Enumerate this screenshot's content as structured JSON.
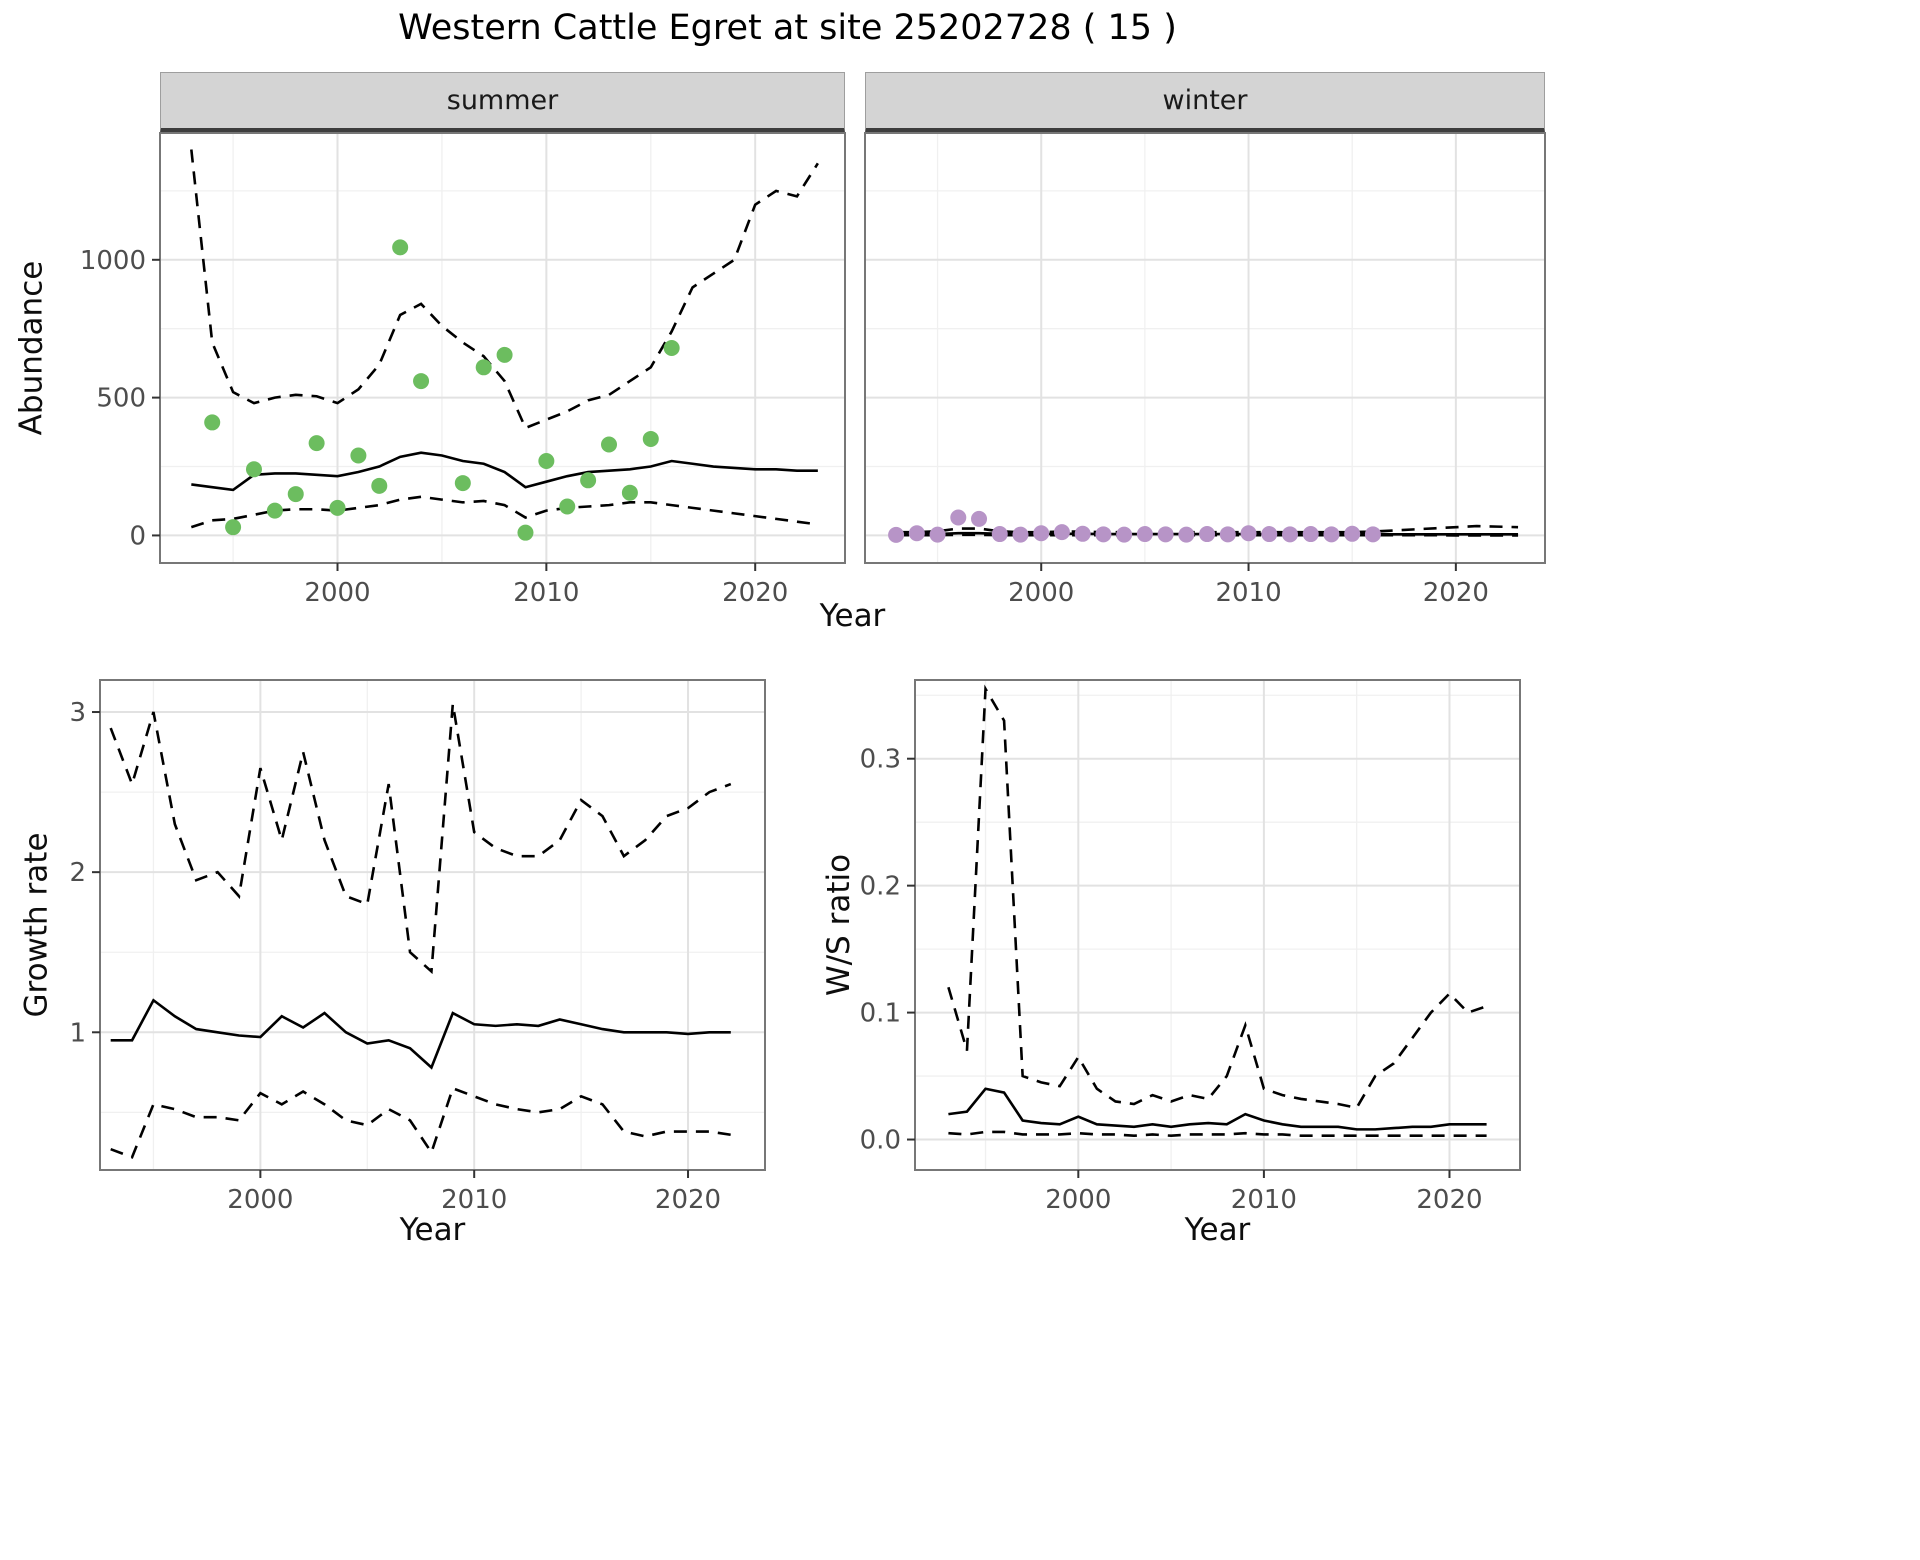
{
  "title": "Western Cattle Egret at site 25202728 ( 15 )",
  "top_row": {
    "y_axis_label": "Abundance",
    "x_axis_label": "Year",
    "facets": [
      {
        "label": "summer"
      },
      {
        "label": "winter"
      }
    ]
  },
  "bottom_left": {
    "y_axis_label": "Growth rate",
    "x_axis_label": "Year"
  },
  "bottom_right": {
    "y_axis_label": "W/S ratio",
    "x_axis_label": "Year"
  },
  "colors": {
    "line": "#000000",
    "grid_major": "#e2e2e2",
    "grid_minor": "#f0f0f0",
    "axis_text": "#4d4d4d",
    "strip_bg": "#d4d4d4",
    "panel_border": "#777777",
    "summer_points": "#6cbd5f",
    "winter_points": "#b794c7"
  },
  "chart_data": [
    {
      "id": "abundance-summer",
      "type": "line",
      "facet": "summer",
      "xlabel": "Year",
      "ylabel": "Abundance",
      "xlim": [
        1991.5,
        2024.3
      ],
      "ylim": [
        -100,
        1460
      ],
      "x_ticks": [
        2000,
        2010,
        2020
      ],
      "x_tick_labels": [
        "2000",
        "2010",
        "2020"
      ],
      "y_ticks": [
        0,
        500,
        1000
      ],
      "y_tick_labels": [
        "0",
        "500",
        "1000"
      ],
      "show_y_tick_labels": true,
      "x": [
        1993,
        1994,
        1995,
        1996,
        1997,
        1998,
        1999,
        2000,
        2001,
        2002,
        2003,
        2004,
        2005,
        2006,
        2007,
        2008,
        2009,
        2010,
        2011,
        2012,
        2013,
        2014,
        2015,
        2016,
        2017,
        2018,
        2019,
        2020,
        2021,
        2022,
        2023
      ],
      "series": [
        {
          "name": "upper_ci",
          "style": "dashed",
          "values": [
            1400,
            700,
            520,
            480,
            500,
            510,
            505,
            480,
            530,
            620,
            800,
            840,
            760,
            700,
            650,
            560,
            390,
            420,
            450,
            490,
            510,
            560,
            610,
            740,
            900,
            950,
            1000,
            1200,
            1250,
            1230,
            1350
          ]
        },
        {
          "name": "fit",
          "style": "solid",
          "values": [
            185,
            175,
            165,
            220,
            225,
            225,
            220,
            215,
            230,
            250,
            285,
            300,
            290,
            270,
            260,
            230,
            175,
            195,
            215,
            230,
            235,
            240,
            250,
            270,
            260,
            250,
            245,
            240,
            240,
            235,
            235
          ]
        },
        {
          "name": "lower_ci",
          "style": "dashed",
          "values": [
            30,
            55,
            60,
            75,
            90,
            95,
            95,
            90,
            100,
            110,
            130,
            140,
            130,
            120,
            125,
            110,
            65,
            90,
            100,
            105,
            110,
            120,
            120,
            110,
            100,
            90,
            80,
            70,
            60,
            50,
            40
          ]
        }
      ],
      "points": {
        "name": "observed",
        "color": "#6cbd5f",
        "x": [
          1994,
          1995,
          1996,
          1997,
          1998,
          1999,
          2000,
          2001,
          2002,
          2003,
          2004,
          2006,
          2007,
          2008,
          2009,
          2010,
          2011,
          2012,
          2013,
          2014,
          2015,
          2016
        ],
        "y": [
          410,
          30,
          240,
          90,
          150,
          335,
          100,
          290,
          180,
          1045,
          560,
          190,
          610,
          655,
          10,
          270,
          105,
          200,
          330,
          155,
          350,
          680
        ]
      }
    },
    {
      "id": "abundance-winter",
      "type": "line",
      "facet": "winter",
      "xlabel": "Year",
      "ylabel": "Abundance",
      "xlim": [
        1991.5,
        2024.3
      ],
      "ylim": [
        -100,
        1460
      ],
      "x_ticks": [
        2000,
        2010,
        2020
      ],
      "x_tick_labels": [
        "2000",
        "2010",
        "2020"
      ],
      "y_ticks": [
        0,
        500,
        1000
      ],
      "y_tick_labels": [
        "0",
        "500",
        "1000"
      ],
      "show_y_tick_labels": false,
      "x": [
        1993,
        1994,
        1995,
        1996,
        1997,
        1998,
        1999,
        2000,
        2001,
        2002,
        2003,
        2004,
        2005,
        2006,
        2007,
        2008,
        2009,
        2010,
        2011,
        2012,
        2013,
        2014,
        2015,
        2016,
        2017,
        2018,
        2019,
        2020,
        2021,
        2022,
        2023
      ],
      "series": [
        {
          "name": "upper_ci",
          "style": "dashed",
          "values": [
            12,
            12,
            15,
            25,
            25,
            15,
            12,
            12,
            14,
            14,
            12,
            12,
            12,
            12,
            12,
            12,
            12,
            12,
            12,
            12,
            12,
            12,
            12,
            14,
            18,
            22,
            26,
            30,
            34,
            32,
            30
          ]
        },
        {
          "name": "fit",
          "style": "solid",
          "values": [
            4,
            4,
            5,
            8,
            8,
            6,
            5,
            5,
            6,
            6,
            5,
            5,
            5,
            5,
            5,
            5,
            5,
            5,
            5,
            5,
            5,
            5,
            5,
            5,
            4,
            4,
            4,
            4,
            4,
            4,
            4
          ]
        },
        {
          "name": "lower_ci",
          "style": "dashed",
          "values": [
            1,
            1,
            1,
            2,
            2,
            1,
            1,
            1,
            1,
            1,
            1,
            1,
            1,
            1,
            1,
            1,
            1,
            1,
            1,
            1,
            1,
            1,
            1,
            1,
            1,
            1,
            1,
            0,
            0,
            0,
            0
          ]
        }
      ],
      "points": {
        "name": "observed",
        "color": "#b794c7",
        "x": [
          1993,
          1994,
          1995,
          1996,
          1997,
          1998,
          1999,
          2000,
          2001,
          2002,
          2003,
          2004,
          2005,
          2006,
          2007,
          2008,
          2009,
          2010,
          2011,
          2012,
          2013,
          2014,
          2015,
          2016
        ],
        "y": [
          2,
          8,
          3,
          65,
          60,
          5,
          3,
          8,
          12,
          6,
          4,
          3,
          5,
          4,
          3,
          5,
          4,
          8,
          5,
          4,
          5,
          4,
          6,
          4
        ]
      }
    },
    {
      "id": "growth-rate",
      "type": "line",
      "facet": "",
      "xlabel": "Year",
      "ylabel": "Growth rate",
      "xlim": [
        1992.5,
        2023.6
      ],
      "ylim": [
        0.14,
        3.2
      ],
      "x_ticks": [
        2000,
        2010,
        2020
      ],
      "x_tick_labels": [
        "2000",
        "2010",
        "2020"
      ],
      "y_ticks": [
        1,
        2,
        3
      ],
      "y_tick_labels": [
        "1",
        "2",
        "3"
      ],
      "show_y_tick_labels": true,
      "x": [
        1993,
        1994,
        1995,
        1996,
        1997,
        1998,
        1999,
        2000,
        2001,
        2002,
        2003,
        2004,
        2005,
        2006,
        2007,
        2008,
        2009,
        2010,
        2011,
        2012,
        2013,
        2014,
        2015,
        2016,
        2017,
        2018,
        2019,
        2020,
        2021,
        2022
      ],
      "series": [
        {
          "name": "upper_ci",
          "style": "dashed",
          "values": [
            2.9,
            2.55,
            3.0,
            2.3,
            1.95,
            2.0,
            1.85,
            2.65,
            2.2,
            2.75,
            2.2,
            1.85,
            1.8,
            2.55,
            1.5,
            1.38,
            3.05,
            2.25,
            2.15,
            2.1,
            2.1,
            2.2,
            2.45,
            2.35,
            2.1,
            2.2,
            2.35,
            2.4,
            2.5,
            2.55
          ]
        },
        {
          "name": "fit",
          "style": "solid",
          "values": [
            0.95,
            0.95,
            1.2,
            1.1,
            1.02,
            1.0,
            0.98,
            0.97,
            1.1,
            1.03,
            1.12,
            1.0,
            0.93,
            0.95,
            0.9,
            0.78,
            1.12,
            1.05,
            1.04,
            1.05,
            1.04,
            1.08,
            1.05,
            1.02,
            1.0,
            1.0,
            1.0,
            0.99,
            1.0,
            1.0
          ]
        },
        {
          "name": "lower_ci",
          "style": "dashed",
          "values": [
            0.27,
            0.22,
            0.55,
            0.52,
            0.47,
            0.47,
            0.45,
            0.62,
            0.55,
            0.63,
            0.55,
            0.45,
            0.42,
            0.52,
            0.45,
            0.25,
            0.65,
            0.6,
            0.55,
            0.52,
            0.5,
            0.52,
            0.6,
            0.55,
            0.38,
            0.35,
            0.38,
            0.38,
            0.38,
            0.36
          ]
        }
      ]
    },
    {
      "id": "ws-ratio",
      "type": "line",
      "facet": "",
      "xlabel": "Year",
      "ylabel": "W/S ratio",
      "xlim": [
        1991.2,
        2023.8
      ],
      "ylim": [
        -0.024,
        0.362
      ],
      "x_ticks": [
        2000,
        2010,
        2020
      ],
      "x_tick_labels": [
        "2000",
        "2010",
        "2020"
      ],
      "y_ticks": [
        0,
        0.1,
        0.2,
        0.3
      ],
      "y_tick_labels": [
        "0.0",
        "0.1",
        "0.2",
        "0.3"
      ],
      "show_y_tick_labels": true,
      "x": [
        1993,
        1994,
        1995,
        1996,
        1997,
        1998,
        1999,
        2000,
        2001,
        2002,
        2003,
        2004,
        2005,
        2006,
        2007,
        2008,
        2009,
        2010,
        2011,
        2012,
        2013,
        2014,
        2015,
        2016,
        2017,
        2018,
        2019,
        2020,
        2021,
        2022
      ],
      "series": [
        {
          "name": "upper_ci",
          "style": "dashed",
          "values": [
            0.12,
            0.07,
            0.355,
            0.33,
            0.05,
            0.045,
            0.042,
            0.065,
            0.04,
            0.03,
            0.028,
            0.035,
            0.03,
            0.035,
            0.032,
            0.05,
            0.09,
            0.04,
            0.035,
            0.032,
            0.03,
            0.028,
            0.025,
            0.05,
            0.06,
            0.08,
            0.1,
            0.115,
            0.1,
            0.105
          ]
        },
        {
          "name": "fit",
          "style": "solid",
          "values": [
            0.02,
            0.022,
            0.04,
            0.037,
            0.015,
            0.013,
            0.012,
            0.018,
            0.012,
            0.011,
            0.01,
            0.012,
            0.01,
            0.012,
            0.013,
            0.012,
            0.02,
            0.015,
            0.012,
            0.01,
            0.01,
            0.01,
            0.008,
            0.008,
            0.009,
            0.01,
            0.01,
            0.012,
            0.012,
            0.012
          ]
        },
        {
          "name": "lower_ci",
          "style": "dashed",
          "values": [
            0.005,
            0.004,
            0.006,
            0.006,
            0.004,
            0.004,
            0.004,
            0.005,
            0.004,
            0.004,
            0.003,
            0.004,
            0.003,
            0.004,
            0.004,
            0.004,
            0.005,
            0.004,
            0.004,
            0.003,
            0.003,
            0.003,
            0.003,
            0.003,
            0.003,
            0.003,
            0.003,
            0.003,
            0.003,
            0.003
          ]
        }
      ]
    }
  ]
}
